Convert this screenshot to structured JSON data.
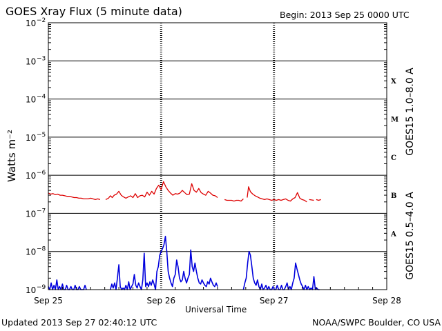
{
  "title": "GOES Xray Flux (5 minute data)",
  "begin": "Begin:  2013 Sep 25 0000 UTC",
  "updated": "Updated 2013 Sep 27 02:40:12 UTC",
  "credit": "NOAA/SWPC Boulder, CO USA",
  "colors": {
    "long": "#dd0000",
    "short": "#0000dd",
    "axis": "#000000"
  },
  "chart_data": {
    "type": "line",
    "xlabel": "Universal Time",
    "ylabel": "Watts m⁻²",
    "y_scale": "log",
    "ylim": [
      1e-09,
      0.01
    ],
    "xlim": [
      0,
      72
    ],
    "x_unit": "hours since Sep 25 00:00 UTC",
    "grid": true,
    "x_ticks": [
      {
        "x": 0,
        "label": "Sep 25"
      },
      {
        "x": 24,
        "label": "Sep 26"
      },
      {
        "x": 48,
        "label": "Sep 27"
      },
      {
        "x": 72,
        "label": "Sep 28"
      }
    ],
    "y_ticks": [
      {
        "value": 0.01,
        "base": "10",
        "exp": "−2"
      },
      {
        "value": 0.001,
        "base": "10",
        "exp": "−3"
      },
      {
        "value": 0.0001,
        "base": "10",
        "exp": "−4"
      },
      {
        "value": 1e-05,
        "base": "10",
        "exp": "−5"
      },
      {
        "value": 1e-06,
        "base": "10",
        "exp": "−6"
      },
      {
        "value": 1e-07,
        "base": "10",
        "exp": "−7"
      },
      {
        "value": 1e-08,
        "base": "10",
        "exp": "−8"
      },
      {
        "value": 1e-09,
        "base": "10",
        "exp": "−9"
      }
    ],
    "flare_classes": [
      {
        "label": "X",
        "value": 0.0003
      },
      {
        "label": "M",
        "value": 3e-05
      },
      {
        "label": "C",
        "value": 3e-06
      },
      {
        "label": "B",
        "value": 3e-07
      },
      {
        "label": "A",
        "value": 3e-08
      }
    ],
    "series": [
      {
        "name": "GOES15 1.0–8.0 A",
        "color": "#dd0000",
        "points": [
          [
            0,
            3.4e-07
          ],
          [
            0.5,
            3.2e-07
          ],
          [
            1,
            3.3e-07
          ],
          [
            1.5,
            3.1e-07
          ],
          [
            2,
            3.2e-07
          ],
          [
            2.5,
            3e-07
          ],
          [
            3,
            3e-07
          ],
          [
            3.5,
            2.9e-07
          ],
          [
            4,
            2.8e-07
          ],
          [
            4.5,
            2.8e-07
          ],
          [
            5,
            2.7e-07
          ],
          [
            5.5,
            2.6e-07
          ],
          [
            6,
            2.6e-07
          ],
          [
            6.5,
            2.5e-07
          ],
          [
            7,
            2.5e-07
          ],
          [
            7.5,
            2.4e-07
          ],
          [
            8,
            2.4e-07
          ],
          [
            8.5,
            2.4e-07
          ],
          [
            9,
            2.5e-07
          ],
          [
            9.5,
            2.4e-07
          ],
          [
            10,
            2.3e-07
          ],
          [
            10.5,
            2.4e-07
          ],
          [
            11,
            2.3e-07
          ],
          null,
          [
            12.2,
            2.3e-07
          ],
          [
            12.8,
            2.5e-07
          ],
          [
            13.2,
            2.9e-07
          ],
          [
            13.6,
            2.6e-07
          ],
          [
            14,
            3e-07
          ],
          [
            14.5,
            3.2e-07
          ],
          [
            15,
            3.8e-07
          ],
          [
            15.5,
            3e-07
          ],
          [
            16,
            2.7e-07
          ],
          [
            16.5,
            2.5e-07
          ],
          [
            17,
            2.7e-07
          ],
          [
            17.5,
            2.9e-07
          ],
          [
            18,
            2.6e-07
          ],
          [
            18.5,
            3.3e-07
          ],
          [
            19,
            2.6e-07
          ],
          [
            19.5,
            2.9e-07
          ],
          [
            20,
            3e-07
          ],
          [
            20.5,
            2.7e-07
          ],
          [
            21,
            3.6e-07
          ],
          [
            21.5,
            3e-07
          ],
          [
            22,
            3.8e-07
          ],
          [
            22.5,
            3.2e-07
          ],
          [
            23,
            4.5e-07
          ],
          [
            23.5,
            5.5e-07
          ],
          [
            24,
            4.2e-07
          ],
          [
            24.5,
            6.8e-07
          ],
          [
            25,
            5e-07
          ],
          [
            25.5,
            4e-07
          ],
          [
            26,
            3.4e-07
          ],
          [
            26.5,
            3e-07
          ],
          [
            27,
            3.3e-07
          ],
          [
            27.5,
            3.2e-07
          ],
          [
            28,
            3.4e-07
          ],
          [
            28.5,
            4e-07
          ],
          [
            29,
            3.5e-07
          ],
          [
            29.5,
            3.1e-07
          ],
          [
            30,
            3.2e-07
          ],
          [
            30.5,
            6e-07
          ],
          [
            31,
            4e-07
          ],
          [
            31.5,
            3.6e-07
          ],
          [
            32,
            4.5e-07
          ],
          [
            32.5,
            3.5e-07
          ],
          [
            33,
            3.2e-07
          ],
          [
            33.5,
            3e-07
          ],
          [
            34,
            3.8e-07
          ],
          [
            34.5,
            3.4e-07
          ],
          [
            35,
            3e-07
          ],
          [
            35.5,
            2.9e-07
          ],
          [
            36,
            2.6e-07
          ],
          null,
          [
            37.5,
            2.3e-07
          ],
          [
            38,
            2.2e-07
          ],
          [
            38.5,
            2.2e-07
          ],
          [
            39,
            2.2e-07
          ],
          [
            39.5,
            2.1e-07
          ],
          [
            40,
            2.2e-07
          ],
          [
            40.5,
            2.2e-07
          ],
          [
            41,
            2.1e-07
          ],
          [
            41.5,
            2.4e-07
          ],
          null,
          [
            42.3,
            2.6e-07
          ],
          [
            42.6,
            5e-07
          ],
          [
            43,
            3.7e-07
          ],
          [
            43.5,
            3.2e-07
          ],
          [
            44,
            2.9e-07
          ],
          [
            44.5,
            2.7e-07
          ],
          [
            45,
            2.5e-07
          ],
          [
            45.5,
            2.4e-07
          ],
          [
            46,
            2.3e-07
          ],
          [
            46.5,
            2.4e-07
          ],
          [
            47,
            2.3e-07
          ],
          [
            47.5,
            2.2e-07
          ],
          [
            48,
            2.3e-07
          ],
          [
            48.5,
            2.2e-07
          ],
          [
            49,
            2.3e-07
          ],
          [
            49.5,
            2.2e-07
          ],
          [
            50,
            2.3e-07
          ],
          [
            50.5,
            2.4e-07
          ],
          [
            51,
            2.2e-07
          ],
          [
            51.5,
            2.1e-07
          ],
          [
            52,
            2.4e-07
          ],
          [
            52.5,
            2.6e-07
          ],
          [
            53,
            3.5e-07
          ],
          [
            53.5,
            2.5e-07
          ],
          [
            54,
            2.3e-07
          ],
          [
            54.5,
            2.2e-07
          ],
          [
            55,
            2e-07
          ],
          null,
          [
            55.5,
            2.3e-07
          ],
          [
            56.5,
            2.2e-07
          ],
          null,
          [
            57,
            2.3e-07
          ],
          [
            57.5,
            2.2e-07
          ],
          [
            58,
            2.3e-07
          ]
        ]
      },
      {
        "name": "GOES15 0.5–4.0 A",
        "color": "#0000dd",
        "points": [
          [
            0,
            1.2e-09
          ],
          [
            0.3,
            1e-09
          ],
          [
            0.6,
            1.5e-09
          ],
          [
            0.9,
            1e-09
          ],
          [
            1.2,
            1.3e-09
          ],
          [
            1.5,
            1e-09
          ],
          [
            1.8,
            1.8e-09
          ],
          [
            2.1,
            1e-09
          ],
          [
            2.4,
            1.2e-09
          ],
          [
            2.7,
            1e-09
          ],
          [
            3,
            1.4e-09
          ],
          [
            3.3,
            1e-09
          ],
          [
            3.6,
            1e-09
          ],
          [
            3.9,
            1.3e-09
          ],
          [
            4.2,
            1e-09
          ],
          [
            4.5,
            1e-09
          ],
          [
            4.8,
            1.2e-09
          ],
          [
            5.1,
            1e-09
          ],
          [
            5.4,
            1e-09
          ],
          [
            5.7,
            1.3e-09
          ],
          [
            6,
            1e-09
          ],
          [
            6.3,
            1e-09
          ],
          [
            6.6,
            1.2e-09
          ],
          [
            6.9,
            1e-09
          ],
          [
            7.2,
            1e-09
          ],
          [
            7.5,
            1e-09
          ],
          [
            7.8,
            1.3e-09
          ],
          [
            8.1,
            1e-09
          ],
          null,
          [
            13.2,
            1e-09
          ],
          [
            13.5,
            1.4e-09
          ],
          [
            13.8,
            1.1e-09
          ],
          [
            14.1,
            1.5e-09
          ],
          [
            14.4,
            1e-09
          ],
          [
            14.7,
            2e-09
          ],
          [
            15,
            4.5e-09
          ],
          [
            15.3,
            1.2e-09
          ],
          [
            15.6,
            1e-09
          ],
          [
            15.9,
            1.1e-09
          ],
          [
            16.2,
            1e-09
          ],
          [
            16.5,
            1.3e-09
          ],
          [
            16.8,
            1e-09
          ],
          [
            17.1,
            1.6e-09
          ],
          [
            17.4,
            1e-09
          ],
          [
            17.7,
            1.2e-09
          ],
          [
            18,
            1.4e-09
          ],
          [
            18.3,
            2.5e-09
          ],
          [
            18.6,
            1.3e-09
          ],
          [
            18.9,
            1.1e-09
          ],
          [
            19.2,
            1.5e-09
          ],
          [
            19.5,
            1.2e-09
          ],
          [
            19.8,
            1e-09
          ],
          [
            20.1,
            1.8e-09
          ],
          [
            20.4,
            9e-09
          ],
          [
            20.7,
            1.2e-09
          ],
          [
            21,
            1.5e-09
          ],
          [
            21.3,
            1.2e-09
          ],
          [
            21.6,
            1.6e-09
          ],
          [
            21.9,
            1.3e-09
          ],
          [
            22.2,
            1.8e-09
          ],
          [
            22.5,
            1.4e-09
          ],
          [
            22.8,
            1e-09
          ],
          [
            23.1,
            3e-09
          ],
          [
            23.4,
            4e-09
          ],
          [
            23.7,
            8e-09
          ],
          [
            24,
            1e-08
          ],
          [
            24.3,
            1.2e-08
          ],
          [
            24.6,
            1.5e-08
          ],
          [
            24.9,
            2.5e-08
          ],
          [
            25.2,
            1e-08
          ],
          [
            25.5,
            3e-09
          ],
          [
            25.8,
            2e-09
          ],
          [
            26.1,
            1.5e-09
          ],
          [
            26.4,
            1.2e-09
          ],
          [
            26.7,
            2e-09
          ],
          [
            27,
            2.5e-09
          ],
          [
            27.3,
            6e-09
          ],
          [
            27.6,
            4e-09
          ],
          [
            27.9,
            2e-09
          ],
          [
            28.2,
            1.6e-09
          ],
          [
            28.5,
            1.8e-09
          ],
          [
            28.8,
            3e-09
          ],
          [
            29.1,
            2e-09
          ],
          [
            29.4,
            1.5e-09
          ],
          [
            29.7,
            2e-09
          ],
          [
            30,
            2.5e-09
          ],
          [
            30.3,
            1.1e-08
          ],
          [
            30.6,
            4e-09
          ],
          [
            30.9,
            3e-09
          ],
          [
            31.2,
            5e-09
          ],
          [
            31.5,
            3e-09
          ],
          [
            31.8,
            2e-09
          ],
          [
            32.1,
            1.5e-09
          ],
          [
            32.4,
            1.4e-09
          ],
          [
            32.7,
            1.8e-09
          ],
          [
            33,
            1.5e-09
          ],
          [
            33.3,
            1.3e-09
          ],
          [
            33.6,
            1.2e-09
          ],
          [
            33.9,
            1.6e-09
          ],
          [
            34.2,
            1.4e-09
          ],
          [
            34.5,
            2e-09
          ],
          [
            34.8,
            1.6e-09
          ],
          [
            35.1,
            1.3e-09
          ],
          [
            35.4,
            1.2e-09
          ],
          [
            35.7,
            1.5e-09
          ],
          [
            36,
            1.2e-09
          ],
          null,
          [
            41.5,
            1e-09
          ],
          [
            41.8,
            1.5e-09
          ],
          [
            42.1,
            2e-09
          ],
          [
            42.4,
            5e-09
          ],
          [
            42.7,
            1e-08
          ],
          [
            43,
            8e-09
          ],
          [
            43.3,
            4e-09
          ],
          [
            43.6,
            2e-09
          ],
          [
            43.9,
            1.5e-09
          ],
          [
            44.2,
            1.3e-09
          ],
          [
            44.5,
            1.8e-09
          ],
          [
            44.8,
            1.2e-09
          ],
          [
            45.1,
            1e-09
          ],
          [
            45.4,
            1.4e-09
          ],
          [
            45.7,
            1e-09
          ],
          [
            46,
            1.1e-09
          ],
          [
            46.3,
            1.3e-09
          ],
          [
            46.6,
            1e-09
          ],
          [
            46.9,
            1.2e-09
          ],
          [
            47.2,
            1e-09
          ],
          [
            47.5,
            1e-09
          ],
          [
            47.8,
            1.2e-09
          ],
          [
            48.1,
            1e-09
          ],
          [
            48.4,
            1e-09
          ],
          [
            48.7,
            1.3e-09
          ],
          [
            49,
            1e-09
          ],
          [
            49.3,
            1e-09
          ],
          [
            49.6,
            1.3e-09
          ],
          [
            49.9,
            1e-09
          ],
          [
            50.2,
            1e-09
          ],
          [
            50.5,
            1.2e-09
          ],
          [
            50.8,
            1.5e-09
          ],
          [
            51.1,
            1e-09
          ],
          [
            51.4,
            1.2e-09
          ],
          [
            51.7,
            1e-09
          ],
          [
            52,
            1.5e-09
          ],
          [
            52.3,
            2e-09
          ],
          [
            52.6,
            5e-09
          ],
          [
            52.9,
            3.5e-09
          ],
          [
            53.2,
            2.5e-09
          ],
          [
            53.5,
            1.8e-09
          ],
          [
            53.8,
            1.4e-09
          ],
          [
            54.1,
            1.2e-09
          ],
          [
            54.4,
            1e-09
          ],
          [
            54.7,
            1.3e-09
          ],
          [
            55,
            1e-09
          ],
          [
            55.3,
            1.2e-09
          ],
          [
            55.6,
            1e-09
          ],
          [
            55.9,
            1.1e-09
          ],
          [
            56.2,
            1e-09
          ],
          [
            56.5,
            2.2e-09
          ],
          [
            56.8,
            1e-09
          ],
          [
            57.1,
            1.1e-09
          ],
          [
            57.4,
            1e-09
          ],
          [
            57.7,
            1e-09
          ]
        ]
      }
    ]
  }
}
